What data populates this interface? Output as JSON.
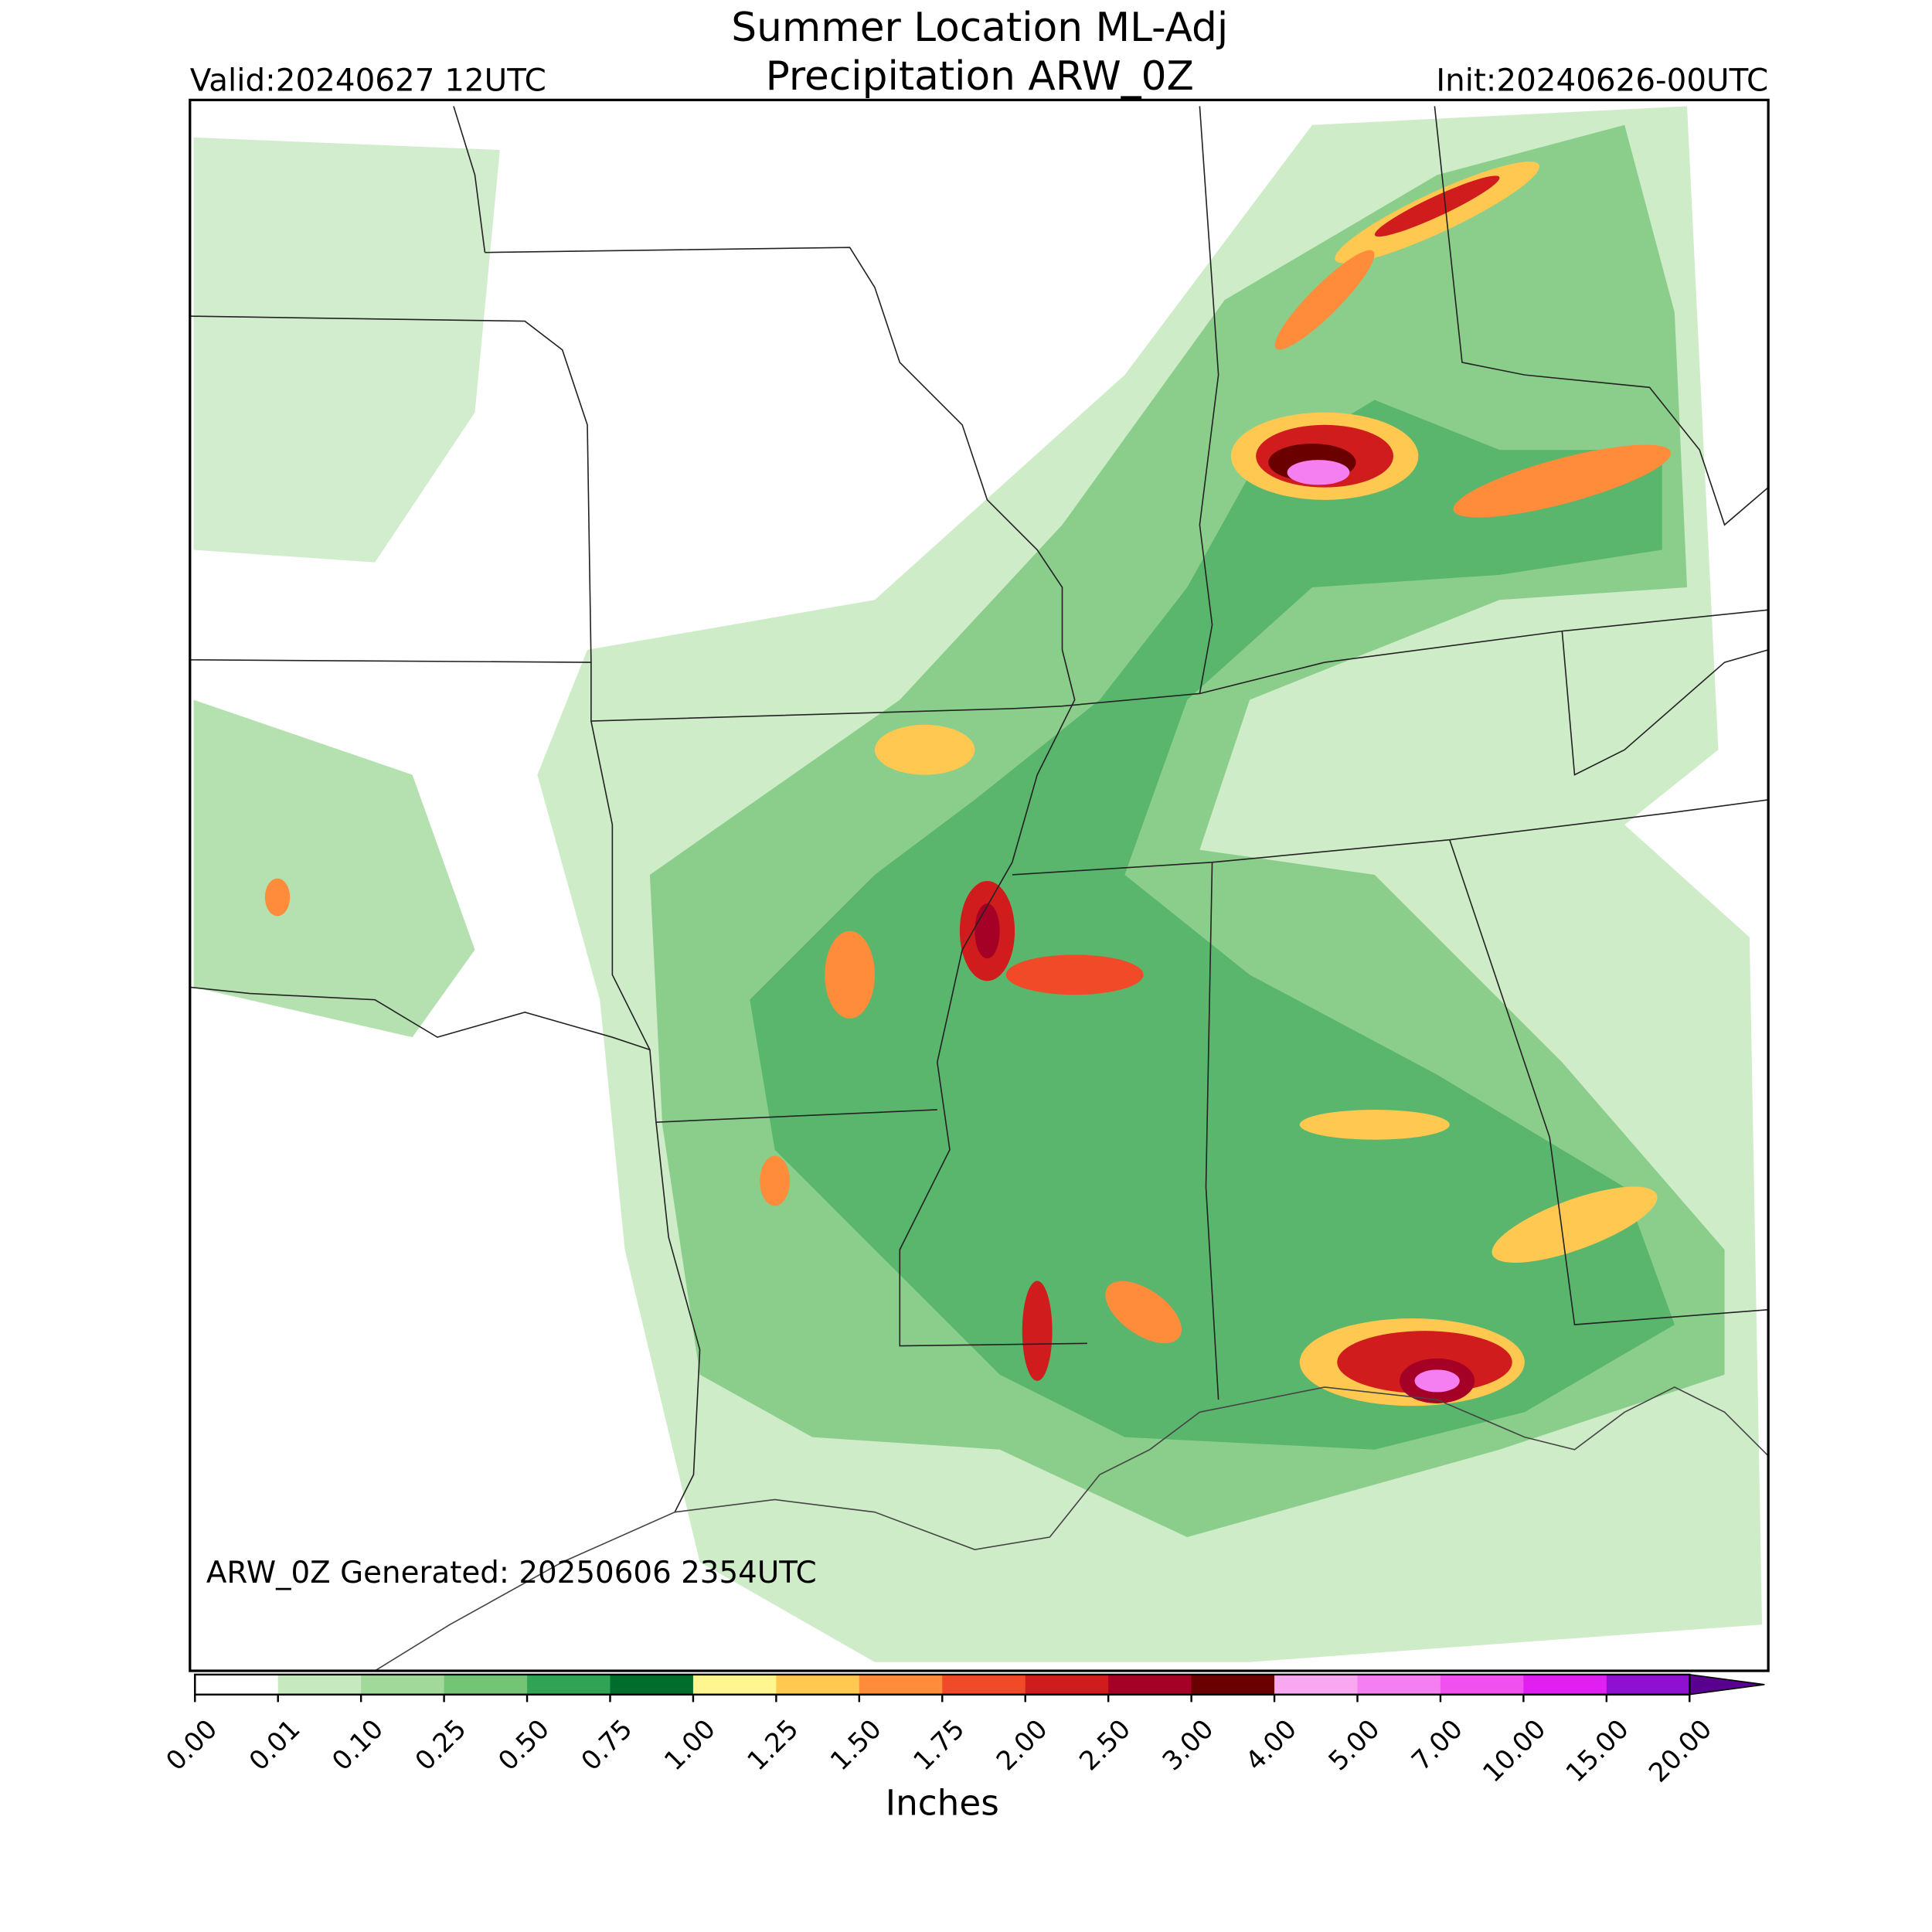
{
  "header": {
    "title": "Summer Location ML-Adj",
    "subtitle": "Precipitation ARW_0Z",
    "valid": "Valid:20240627 12UTC",
    "init": "Init:20240626-00UTC"
  },
  "map": {
    "generated": "ARW_0Z Generated: 20250606 2354UTC"
  },
  "colorbar": {
    "label": "Inches",
    "ticks": [
      {
        "value": 0,
        "label": "0.00"
      },
      {
        "value": 0.01,
        "label": "0.01"
      },
      {
        "value": 0.1,
        "label": "0.10"
      },
      {
        "value": 0.25,
        "label": "0.25"
      },
      {
        "value": 0.5,
        "label": "0.50"
      },
      {
        "value": 0.75,
        "label": "0.75"
      },
      {
        "value": 1,
        "label": "1.00"
      },
      {
        "value": 1.25,
        "label": "1.25"
      },
      {
        "value": 1.5,
        "label": "1.50"
      },
      {
        "value": 1.75,
        "label": "1.75"
      },
      {
        "value": 2,
        "label": "2.00"
      },
      {
        "value": 2.5,
        "label": "2.50"
      },
      {
        "value": 3,
        "label": "3.00"
      },
      {
        "value": 4,
        "label": "4.00"
      },
      {
        "value": 5,
        "label": "5.00"
      },
      {
        "value": 7,
        "label": "7.00"
      },
      {
        "value": 10,
        "label": "10.00"
      },
      {
        "value": 15,
        "label": "15.00"
      },
      {
        "value": 20,
        "label": "20.00"
      }
    ],
    "colors": [
      "#ffffff",
      "#c7e9c0",
      "#a1d99b",
      "#74c476",
      "#31a354",
      "#006d2c",
      "#fff68f",
      "#ffc850",
      "#ff8c3a",
      "#f04a28",
      "#d01c1c",
      "#a50026",
      "#6b0000",
      "#f7a8f0",
      "#f57ef0",
      "#f050f0",
      "#e020f0",
      "#9010d0"
    ]
  }
}
